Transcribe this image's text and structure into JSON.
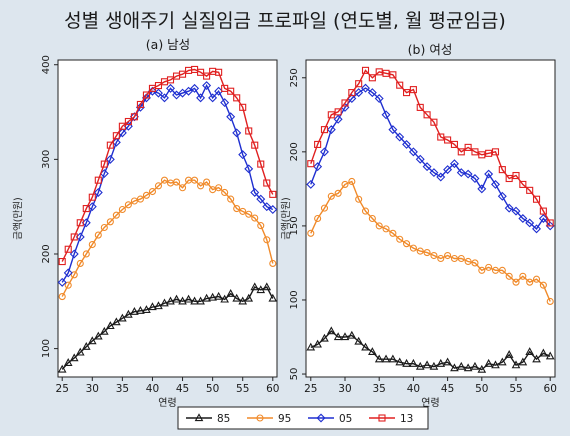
{
  "title": "성별 생애주기 실질임금 프로파일 (연도별, 월 평균임금)",
  "colors": {
    "85": "#1a1a1a",
    "95": "#f08a2a",
    "05": "#1f2fd0",
    "13": "#e02020"
  },
  "markers": {
    "85": "triangle",
    "95": "circle",
    "05": "diamond",
    "13": "square"
  },
  "legend": [
    "85",
    "95",
    "05",
    "13"
  ],
  "chart_data": [
    {
      "type": "line",
      "title": "(a) 남성",
      "xlabel": "연령",
      "ylabel": "금액(만원)",
      "xlim": [
        24.3,
        60.7
      ],
      "ylim": [
        70,
        405
      ],
      "xticks": [
        25,
        30,
        35,
        40,
        45,
        50,
        55,
        60
      ],
      "yticks": [
        100,
        200,
        300,
        400
      ],
      "x": [
        25,
        26,
        27,
        28,
        29,
        30,
        31,
        32,
        33,
        34,
        35,
        36,
        37,
        38,
        39,
        40,
        41,
        42,
        43,
        44,
        45,
        46,
        47,
        48,
        49,
        50,
        51,
        52,
        53,
        54,
        55,
        56,
        57,
        58,
        59,
        60
      ],
      "series": [
        {
          "name": "85",
          "values": [
            78,
            85,
            90,
            96,
            102,
            108,
            113,
            118,
            124,
            128,
            132,
            136,
            139,
            140,
            141,
            144,
            145,
            148,
            150,
            152,
            150,
            152,
            150,
            150,
            153,
            154,
            155,
            152,
            158,
            153,
            150,
            153,
            165,
            162,
            165,
            153
          ]
        },
        {
          "name": "95",
          "values": [
            155,
            167,
            178,
            190,
            200,
            210,
            220,
            228,
            234,
            241,
            247,
            252,
            256,
            258,
            262,
            266,
            272,
            278,
            275,
            276,
            270,
            278,
            278,
            272,
            276,
            268,
            270,
            265,
            258,
            248,
            245,
            242,
            238,
            230,
            215,
            190
          ]
        },
        {
          "name": "05",
          "values": [
            170,
            180,
            200,
            218,
            233,
            250,
            265,
            285,
            300,
            318,
            328,
            335,
            345,
            355,
            365,
            372,
            370,
            365,
            375,
            368,
            370,
            372,
            375,
            365,
            378,
            365,
            372,
            360,
            345,
            328,
            305,
            290,
            265,
            258,
            250,
            247
          ]
        },
        {
          "name": "13",
          "values": [
            192,
            205,
            218,
            233,
            248,
            260,
            278,
            295,
            315,
            325,
            335,
            340,
            345,
            358,
            368,
            375,
            378,
            382,
            384,
            388,
            390,
            394,
            395,
            392,
            388,
            393,
            392,
            375,
            372,
            365,
            355,
            330,
            315,
            295,
            275,
            263
          ]
        }
      ]
    },
    {
      "type": "line",
      "title": "(b) 여성",
      "xlabel": "연령",
      "ylabel": "금액(만원)",
      "xlim": [
        24.3,
        60.7
      ],
      "ylim": [
        48,
        262
      ],
      "xticks": [
        25,
        30,
        35,
        40,
        45,
        50,
        55,
        60
      ],
      "yticks": [
        50,
        100,
        150,
        200,
        250
      ],
      "x": [
        25,
        26,
        27,
        28,
        29,
        30,
        31,
        32,
        33,
        34,
        35,
        36,
        37,
        38,
        39,
        40,
        41,
        42,
        43,
        44,
        45,
        46,
        47,
        48,
        49,
        50,
        51,
        52,
        53,
        54,
        55,
        56,
        57,
        58,
        59,
        60
      ],
      "series": [
        {
          "name": "85",
          "values": [
            68,
            70,
            74,
            79,
            75,
            75,
            76,
            72,
            68,
            65,
            60,
            60,
            60,
            58,
            57,
            57,
            55,
            56,
            55,
            57,
            58,
            54,
            55,
            54,
            55,
            53,
            57,
            56,
            58,
            63,
            56,
            58,
            65,
            60,
            64,
            62
          ]
        },
        {
          "name": "95",
          "values": [
            145,
            155,
            162,
            170,
            172,
            178,
            180,
            168,
            160,
            155,
            150,
            148,
            145,
            141,
            138,
            135,
            133,
            132,
            130,
            128,
            130,
            128,
            128,
            126,
            125,
            120,
            122,
            120,
            120,
            116,
            112,
            116,
            112,
            114,
            110,
            99
          ]
        },
        {
          "name": "05",
          "values": [
            178,
            190,
            200,
            215,
            222,
            230,
            236,
            240,
            243,
            240,
            236,
            225,
            215,
            210,
            205,
            200,
            195,
            190,
            186,
            183,
            188,
            192,
            186,
            185,
            182,
            175,
            185,
            178,
            170,
            162,
            160,
            155,
            152,
            148,
            155,
            150
          ]
        },
        {
          "name": "13",
          "values": [
            192,
            205,
            215,
            225,
            227,
            233,
            240,
            246,
            255,
            250,
            254,
            253,
            252,
            245,
            240,
            242,
            230,
            225,
            220,
            210,
            208,
            205,
            200,
            203,
            200,
            198,
            199,
            200,
            188,
            182,
            184,
            178,
            174,
            168,
            160,
            152
          ]
        }
      ]
    }
  ]
}
